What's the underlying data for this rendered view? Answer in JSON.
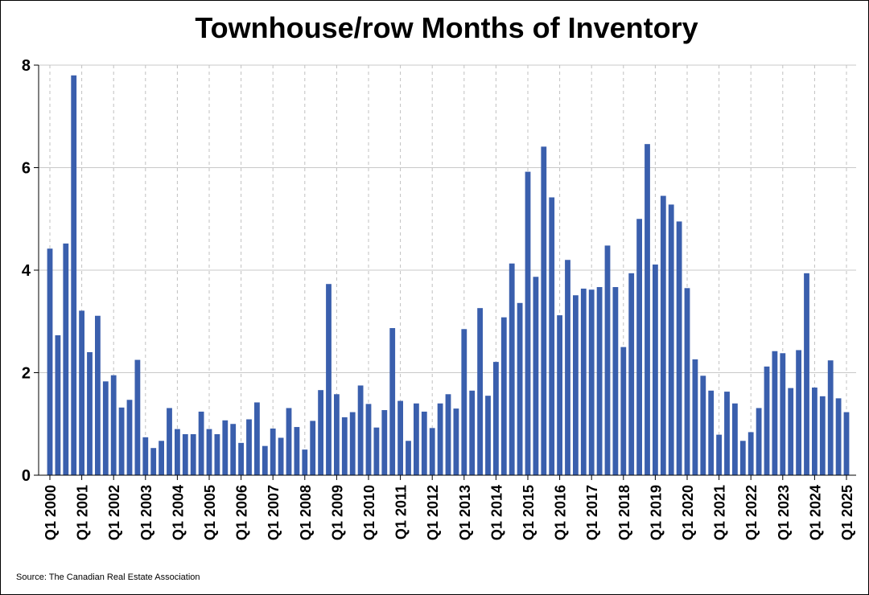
{
  "chart_data": {
    "type": "bar",
    "title": "Townhouse/row Months of Inventory",
    "xlabel": "",
    "ylabel": "",
    "ylim": [
      0,
      8
    ],
    "yticks": [
      0,
      2,
      4,
      6,
      8
    ],
    "grid": {
      "horizontal": "solid",
      "vertical": "dashed"
    },
    "legend": "none",
    "bar_color": "#3a5fad",
    "x_tick_labels": [
      "Q1 2000",
      "Q1 2001",
      "Q1 2002",
      "Q1 2003",
      "Q1 2004",
      "Q1 2005",
      "Q1 2006",
      "Q1 2007",
      "Q1 2008",
      "Q1 2009",
      "Q1 2010",
      "Q1 2011",
      "Q1 2012",
      "Q1 2013",
      "Q1 2014",
      "Q1 2015",
      "Q1 2016",
      "Q1 2017",
      "Q1 2018",
      "Q1 2019",
      "Q1 2020",
      "Q1 2021",
      "Q1 2022",
      "Q1 2023",
      "Q1 2024",
      "Q1 2025"
    ],
    "values": [
      4.42,
      2.73,
      4.52,
      7.8,
      3.21,
      2.4,
      3.11,
      1.83,
      1.95,
      1.32,
      1.47,
      2.25,
      0.74,
      0.53,
      0.67,
      1.31,
      0.9,
      0.8,
      0.8,
      1.24,
      0.9,
      0.8,
      1.07,
      1.0,
      0.63,
      1.09,
      1.42,
      0.57,
      0.91,
      0.73,
      1.31,
      0.94,
      0.5,
      1.06,
      1.66,
      3.73,
      1.58,
      1.13,
      1.23,
      1.75,
      1.39,
      0.93,
      1.27,
      2.87,
      1.45,
      0.67,
      1.4,
      1.24,
      0.92,
      1.4,
      1.58,
      1.3,
      2.85,
      1.65,
      3.26,
      1.55,
      2.21,
      3.08,
      4.13,
      3.36,
      5.92,
      3.87,
      6.41,
      5.42,
      3.12,
      4.2,
      3.51,
      3.64,
      3.62,
      3.67,
      4.48,
      3.67,
      2.5,
      3.94,
      5.0,
      6.46,
      4.11,
      5.45,
      5.28,
      4.95,
      3.65,
      2.26,
      1.94,
      1.65,
      0.79,
      1.63,
      1.4,
      0.67,
      0.84,
      1.31,
      2.12,
      2.42,
      2.38,
      1.7,
      2.44,
      3.94,
      1.71,
      1.54,
      2.24,
      1.5,
      1.23
    ]
  },
  "source": "Source: The Canadian Real Estate Association"
}
